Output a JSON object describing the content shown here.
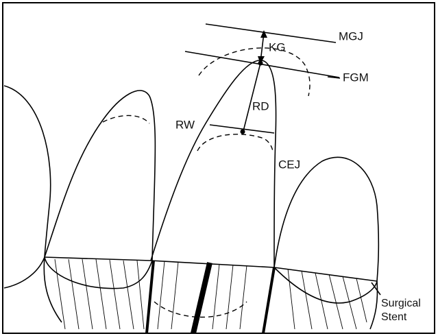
{
  "labels": {
    "mgj": "MGJ",
    "kg": "KG",
    "fgm": "FGM",
    "rd": "RD",
    "rw": "RW",
    "cej": "CEJ",
    "stent": [
      "Surgical",
      "Stent"
    ]
  }
}
